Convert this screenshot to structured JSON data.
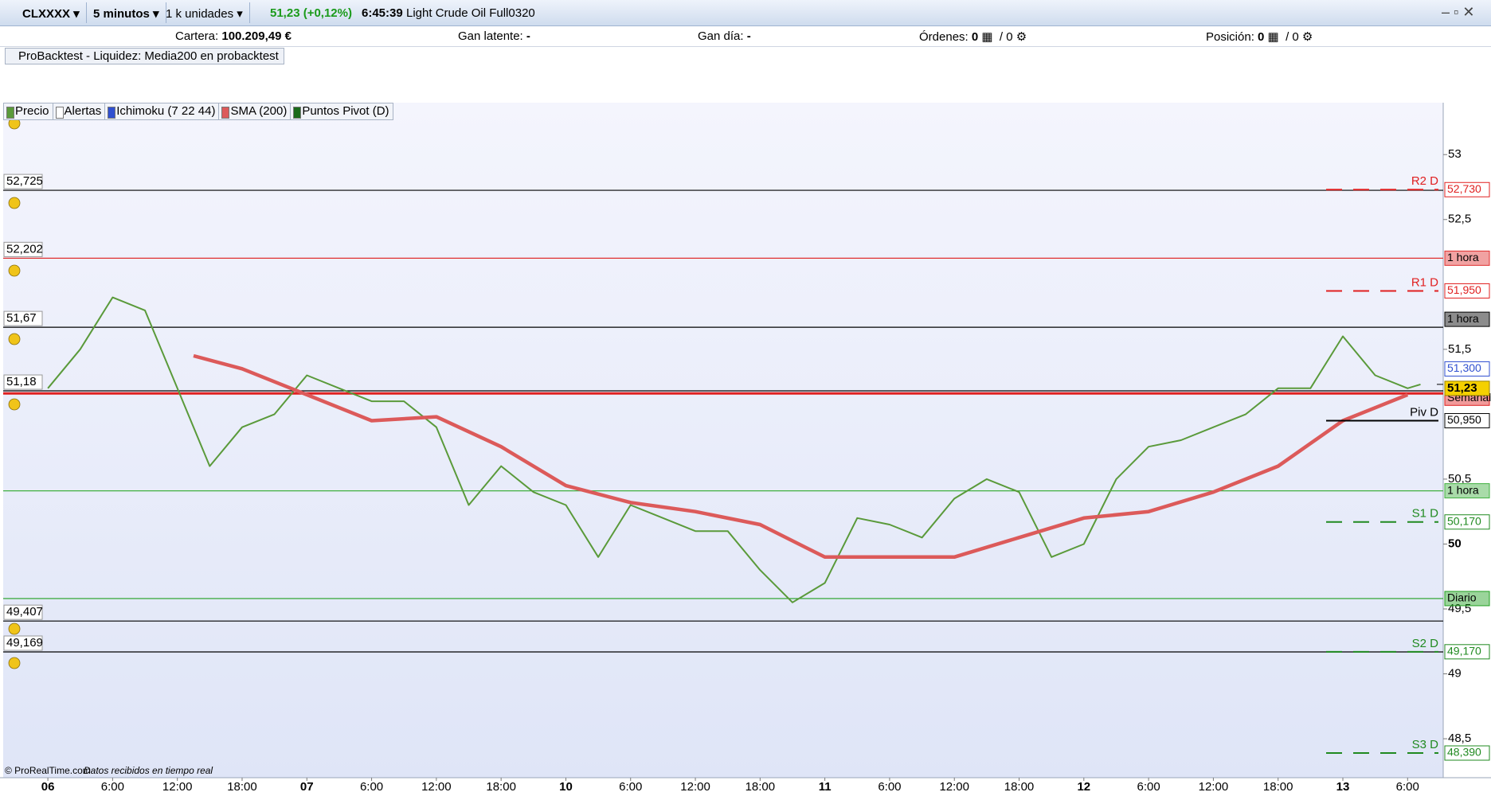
{
  "toolbar": {
    "symbol": "CLXXXX",
    "interval": "5 minutos",
    "units": "1 k unidades",
    "quote": "51,23 (+0,12%)",
    "time": "6:45:39",
    "instrument": "Light Crude Oil Full0320"
  },
  "account": {
    "cartera_label": "Cartera:",
    "cartera": "100.209,49 €",
    "gan_latente_label": "Gan latente:",
    "gan_latente": "-",
    "gan_dia_label": "Gan día:",
    "gan_dia": "-",
    "ordenes_label": "Órdenes:",
    "ordenes": "0",
    "ordenes_total": "/ 0",
    "posicion_label": "Posición:",
    "posicion": "0",
    "posicion_total": "/ 0"
  },
  "probacktest": "ProBacktest - Liquidez: Media200 en probacktest",
  "indicator_tabs": [
    "Precio",
    "Alertas",
    "Ichimoku (7 22 44)",
    "SMA (200)",
    "Puntos Pivot (D)"
  ],
  "footer": {
    "copyright": "© ProRealTime.com",
    "status": "Datos recibidos en tiempo real"
  },
  "chart_data": {
    "type": "line",
    "xlim": [
      -0.69,
      21.55
    ],
    "ylim": [
      48.2,
      53.4
    ],
    "xticks": [
      {
        "value": 0,
        "label": "06"
      },
      {
        "value": 1,
        "label": "6:00"
      },
      {
        "value": 2,
        "label": "12:00"
      },
      {
        "value": 3,
        "label": "18:00"
      },
      {
        "value": 4,
        "label": "07"
      },
      {
        "value": 5,
        "label": "6:00"
      },
      {
        "value": 6,
        "label": "12:00"
      },
      {
        "value": 7,
        "label": "18:00"
      },
      {
        "value": 8,
        "label": "10"
      },
      {
        "value": 9,
        "label": "6:00"
      },
      {
        "value": 10,
        "label": "12:00"
      },
      {
        "value": 11,
        "label": "18:00"
      },
      {
        "value": 12,
        "label": "11"
      },
      {
        "value": 13,
        "label": "6:00"
      },
      {
        "value": 14,
        "label": "12:00"
      },
      {
        "value": 15,
        "label": "18:00"
      },
      {
        "value": 16,
        "label": "12"
      },
      {
        "value": 17,
        "label": "6:00"
      },
      {
        "value": 18,
        "label": "12:00"
      },
      {
        "value": 19,
        "label": "18:00"
      },
      {
        "value": 20,
        "label": "13"
      },
      {
        "value": 21,
        "label": "6:00"
      }
    ],
    "yticks": [
      53,
      {
        "value": 52.5,
        "label": "52,5"
      },
      {
        "value": 51.5,
        "label": "51,5"
      },
      {
        "value": 50.5,
        "label": "50,5"
      },
      50,
      {
        "value": 49.5,
        "label": "49,5"
      },
      49,
      {
        "value": 48.5,
        "label": "48,5"
      }
    ],
    "series": [
      {
        "name": "Precio",
        "color": "#5a9a3a",
        "x": [
          0,
          0.5,
          1,
          1.5,
          2,
          2.5,
          3,
          3.5,
          4,
          4.5,
          5,
          5.5,
          6,
          6.5,
          7,
          7.5,
          8,
          8.5,
          9,
          9.5,
          10,
          10.5,
          11,
          11.5,
          12,
          12.5,
          13,
          13.5,
          14,
          14.5,
          15,
          15.5,
          16,
          16.5,
          17,
          17.5,
          18,
          18.5,
          19,
          19.5,
          20,
          20.5,
          21,
          21.2
        ],
        "values": [
          51.2,
          51.5,
          51.9,
          51.8,
          51.2,
          50.6,
          50.9,
          51.0,
          51.3,
          51.2,
          51.1,
          51.1,
          50.9,
          50.3,
          50.6,
          50.4,
          50.3,
          49.9,
          50.3,
          50.2,
          50.1,
          50.1,
          49.8,
          49.55,
          49.7,
          50.2,
          50.15,
          50.05,
          50.35,
          50.5,
          50.4,
          49.9,
          50.0,
          50.5,
          50.75,
          50.8,
          50.9,
          51.0,
          51.2,
          51.2,
          51.6,
          51.3,
          51.2,
          51.23
        ]
      },
      {
        "name": "SMA (200)",
        "color": "#dc5a5a",
        "x": [
          2.25,
          3,
          4,
          5,
          6,
          7,
          8,
          9,
          10,
          11,
          12,
          13,
          14,
          15,
          16,
          17,
          18,
          19,
          20,
          21
        ],
        "values": [
          51.45,
          51.35,
          51.15,
          50.95,
          50.98,
          50.75,
          50.45,
          50.32,
          50.25,
          50.15,
          49.9,
          49.9,
          49.9,
          50.05,
          50.2,
          50.25,
          50.4,
          50.6,
          50.95,
          51.15
        ]
      }
    ],
    "levels": [
      {
        "value": 52.725,
        "label": "52,725",
        "color": "#000000"
      },
      {
        "value": 52.202,
        "label": "52,202",
        "color": "#e03030",
        "tag": "1 hora"
      },
      {
        "value": 51.67,
        "label": "51,67",
        "color": "#000000",
        "tag": "1 hora"
      },
      {
        "value": 51.18,
        "label": "51,18",
        "color": "#000000"
      },
      {
        "value": 49.407,
        "label": "49,407",
        "color": "#000000"
      },
      {
        "value": 49.169,
        "label": "49,169",
        "color": "#000000"
      }
    ],
    "zones": [
      {
        "value": 51.16,
        "tag": "Semanal",
        "color": "#e02020"
      },
      {
        "value": 50.41,
        "tag": "1 hora",
        "color": "#40b040"
      },
      {
        "value": 49.58,
        "tag": "Diario",
        "color": "#20a020"
      }
    ],
    "pivots": [
      {
        "name": "R2 D",
        "value": 52.73,
        "label": "52,730",
        "color": "#e02020"
      },
      {
        "name": "R1 D",
        "value": 51.95,
        "label": "51,950",
        "color": "#e02020"
      },
      {
        "name": "Piv D",
        "value": 50.95,
        "label": "50,950",
        "color": "#000000"
      },
      {
        "name": "S1 D",
        "value": 50.17,
        "label": "50,170",
        "color": "#208a20"
      },
      {
        "name": "S2 D",
        "value": 49.17,
        "label": "49,170",
        "color": "#208a20"
      },
      {
        "name": "S3 D",
        "value": 48.39,
        "label": "48,390",
        "color": "#208a20"
      }
    ],
    "indicator_value": {
      "value": 51.3,
      "label": "51,300",
      "color": "#3050d0"
    },
    "current_price": {
      "value": 51.23,
      "label": "51,23",
      "color": "#f5d000"
    }
  }
}
